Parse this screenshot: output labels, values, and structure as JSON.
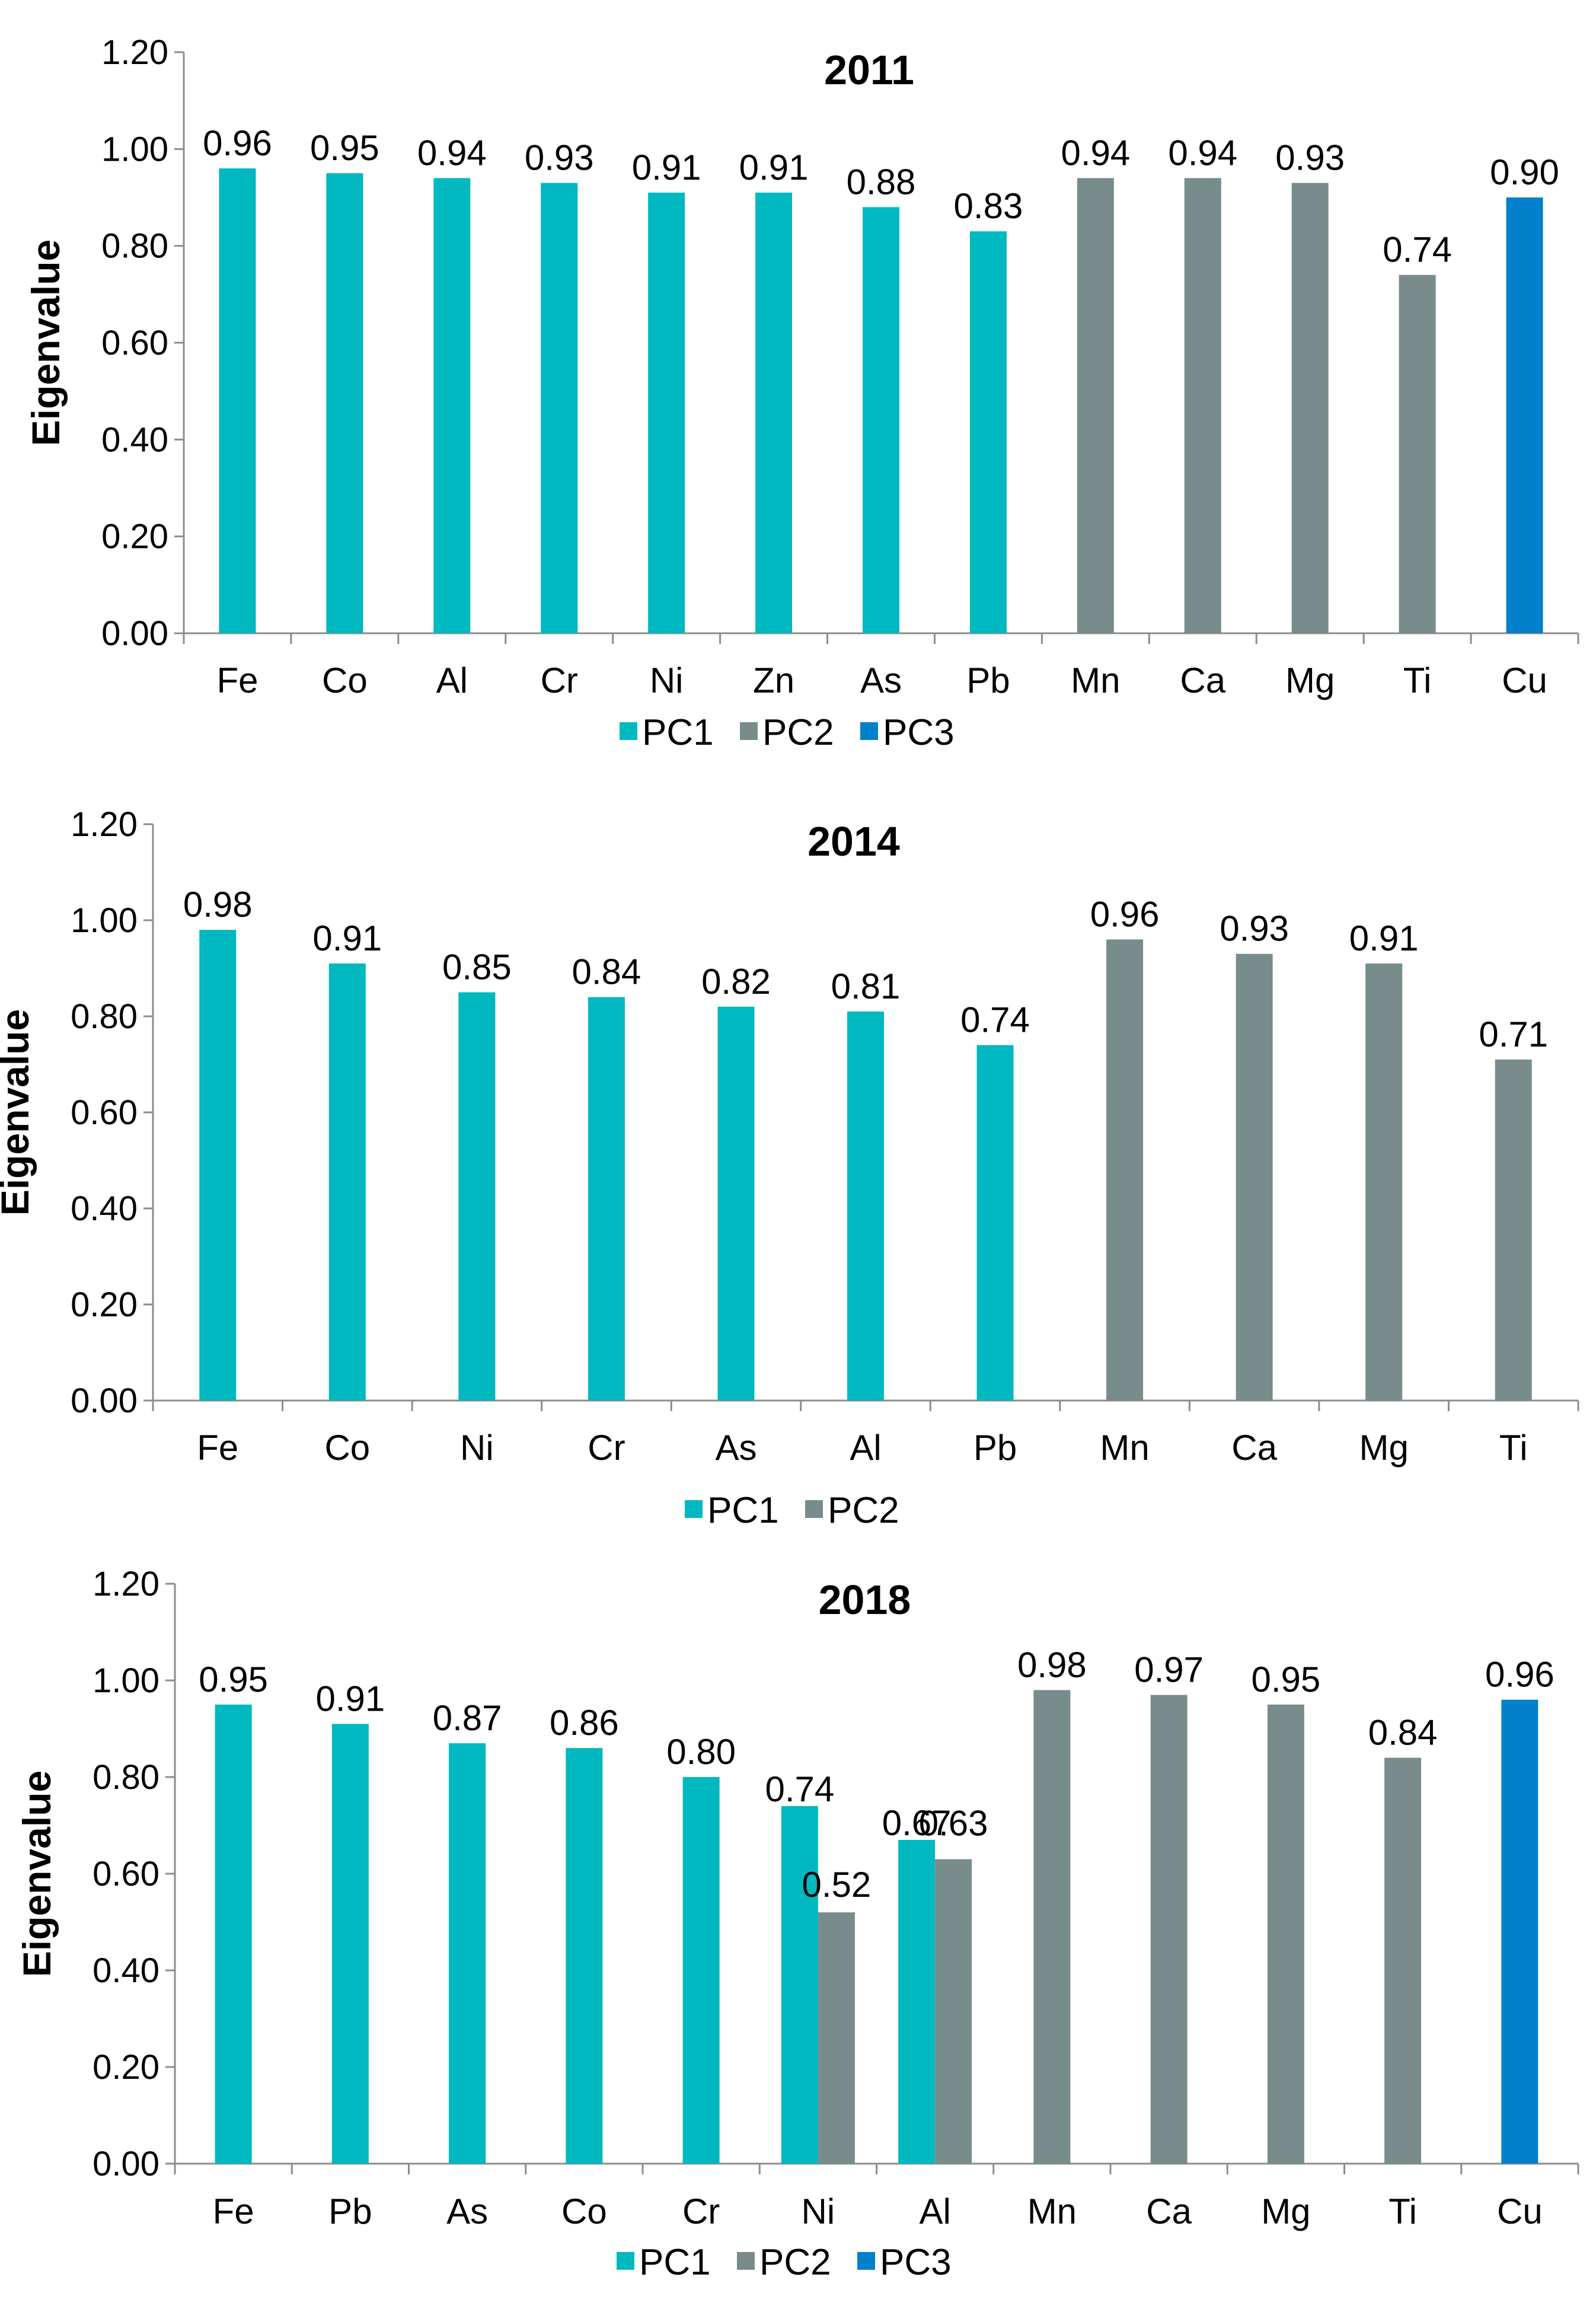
{
  "colors": {
    "PC1": "#00b8bf",
    "PC2": "#778c8b",
    "PC3": "#0280cc"
  },
  "chart_data": [
    {
      "type": "bar",
      "title": "2011",
      "ylabel": "Eigenvalue",
      "xlabel": "",
      "ylim": [
        0,
        1.2
      ],
      "yticks": [
        "0.00",
        "0.20",
        "0.40",
        "0.60",
        "0.80",
        "1.00",
        "1.20"
      ],
      "categories": [
        "Fe",
        "Co",
        "Al",
        "Cr",
        "Ni",
        "Zn",
        "As",
        "Pb",
        "Mn",
        "Ca",
        "Mg",
        "Ti",
        "Cu"
      ],
      "legend": [
        "PC1",
        "PC2",
        "PC3"
      ],
      "bars": [
        {
          "category": "Fe",
          "series": "PC1",
          "value": 0.96,
          "label": "0.96"
        },
        {
          "category": "Co",
          "series": "PC1",
          "value": 0.95,
          "label": "0.95"
        },
        {
          "category": "Al",
          "series": "PC1",
          "value": 0.94,
          "label": "0.94"
        },
        {
          "category": "Cr",
          "series": "PC1",
          "value": 0.93,
          "label": "0.93"
        },
        {
          "category": "Ni",
          "series": "PC1",
          "value": 0.91,
          "label": "0.91"
        },
        {
          "category": "Zn",
          "series": "PC1",
          "value": 0.91,
          "label": "0.91"
        },
        {
          "category": "As",
          "series": "PC1",
          "value": 0.88,
          "label": "0.88"
        },
        {
          "category": "Pb",
          "series": "PC1",
          "value": 0.83,
          "label": "0.83"
        },
        {
          "category": "Mn",
          "series": "PC2",
          "value": 0.94,
          "label": "0.94"
        },
        {
          "category": "Ca",
          "series": "PC2",
          "value": 0.94,
          "label": "0.94"
        },
        {
          "category": "Mg",
          "series": "PC2",
          "value": 0.93,
          "label": "0.93"
        },
        {
          "category": "Ti",
          "series": "PC2",
          "value": 0.74,
          "label": "0.74"
        },
        {
          "category": "Cu",
          "series": "PC3",
          "value": 0.9,
          "label": "0.90"
        }
      ]
    },
    {
      "type": "bar",
      "title": "2014",
      "ylabel": "Eigenvalue",
      "xlabel": "",
      "ylim": [
        0,
        1.2
      ],
      "yticks": [
        "0.00",
        "0.20",
        "0.40",
        "0.60",
        "0.80",
        "1.00",
        "1.20"
      ],
      "categories": [
        "Fe",
        "Co",
        "Ni",
        "Cr",
        "As",
        "Al",
        "Pb",
        "Mn",
        "Ca",
        "Mg",
        "Ti"
      ],
      "legend": [
        "PC1",
        "PC2"
      ],
      "bars": [
        {
          "category": "Fe",
          "series": "PC1",
          "value": 0.98,
          "label": "0.98"
        },
        {
          "category": "Co",
          "series": "PC1",
          "value": 0.91,
          "label": "0.91"
        },
        {
          "category": "Ni",
          "series": "PC1",
          "value": 0.85,
          "label": "0.85"
        },
        {
          "category": "Cr",
          "series": "PC1",
          "value": 0.84,
          "label": "0.84"
        },
        {
          "category": "As",
          "series": "PC1",
          "value": 0.82,
          "label": "0.82"
        },
        {
          "category": "Al",
          "series": "PC1",
          "value": 0.81,
          "label": "0.81"
        },
        {
          "category": "Pb",
          "series": "PC1",
          "value": 0.74,
          "label": "0.74"
        },
        {
          "category": "Mn",
          "series": "PC2",
          "value": 0.96,
          "label": "0.96"
        },
        {
          "category": "Ca",
          "series": "PC2",
          "value": 0.93,
          "label": "0.93"
        },
        {
          "category": "Mg",
          "series": "PC2",
          "value": 0.91,
          "label": "0.91"
        },
        {
          "category": "Ti",
          "series": "PC2",
          "value": 0.71,
          "label": "0.71"
        }
      ]
    },
    {
      "type": "bar",
      "title": "2018",
      "ylabel": "Eigenvalue",
      "xlabel": "",
      "ylim": [
        0,
        1.2
      ],
      "yticks": [
        "0.00",
        "0.20",
        "0.40",
        "0.60",
        "0.80",
        "1.00",
        "1.20"
      ],
      "categories": [
        "Fe",
        "Pb",
        "As",
        "Co",
        "Cr",
        "Ni",
        "Al",
        "Mn",
        "Ca",
        "Mg",
        "Ti",
        "Cu"
      ],
      "legend": [
        "PC1",
        "PC2",
        "PC3"
      ],
      "bars": [
        {
          "category": "Fe",
          "series": "PC1",
          "value": 0.95,
          "label": "0.95"
        },
        {
          "category": "Pb",
          "series": "PC1",
          "value": 0.91,
          "label": "0.91"
        },
        {
          "category": "As",
          "series": "PC1",
          "value": 0.87,
          "label": "0.87"
        },
        {
          "category": "Co",
          "series": "PC1",
          "value": 0.86,
          "label": "0.86"
        },
        {
          "category": "Cr",
          "series": "PC1",
          "value": 0.8,
          "label": "0.80"
        },
        {
          "category": "Ni",
          "series": "PC1",
          "value": 0.74,
          "label": "0.74"
        },
        {
          "category": "Ni",
          "series": "PC2",
          "value": 0.52,
          "label": "0.52"
        },
        {
          "category": "Al",
          "series": "PC1",
          "value": 0.67,
          "label": "0.67"
        },
        {
          "category": "Al",
          "series": "PC2",
          "value": 0.63,
          "label": "0.63"
        },
        {
          "category": "Mn",
          "series": "PC2",
          "value": 0.98,
          "label": "0.98"
        },
        {
          "category": "Ca",
          "series": "PC2",
          "value": 0.97,
          "label": "0.97"
        },
        {
          "category": "Mg",
          "series": "PC2",
          "value": 0.95,
          "label": "0.95"
        },
        {
          "category": "Ti",
          "series": "PC2",
          "value": 0.84,
          "label": "0.84"
        },
        {
          "category": "Cu",
          "series": "PC3",
          "value": 0.96,
          "label": "0.96"
        }
      ]
    }
  ]
}
